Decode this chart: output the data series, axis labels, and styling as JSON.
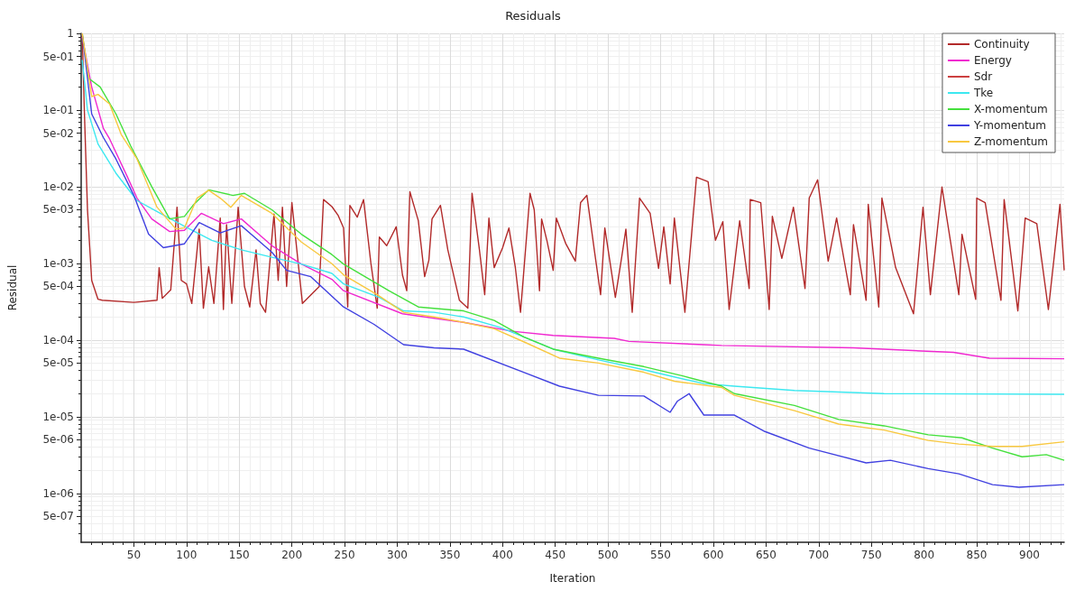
{
  "chart_data": {
    "type": "line",
    "title": "Residuals",
    "xlabel": "Iteration",
    "ylabel": "Residual",
    "log": "y",
    "grid": true,
    "legend": "top right",
    "marker": "none",
    "line_style": "solid",
    "xlim": [
      0,
      933
    ],
    "xticks": [
      50,
      100,
      150,
      200,
      250,
      300,
      350,
      400,
      450,
      500,
      550,
      600,
      650,
      700,
      750,
      800,
      850,
      900
    ],
    "ylim": [
      2.3e-07,
      1
    ],
    "yticks": [
      {
        "value": 1,
        "label": "1"
      },
      {
        "value": 0.5,
        "label": "5e-01"
      },
      {
        "value": 0.1,
        "label": "1e-01"
      },
      {
        "value": 0.05,
        "label": "5e-02"
      },
      {
        "value": 0.01,
        "label": "1e-02"
      },
      {
        "value": 0.005,
        "label": "5e-03"
      },
      {
        "value": 0.001,
        "label": "1e-03"
      },
      {
        "value": 0.0005,
        "label": "5e-04"
      },
      {
        "value": 0.0001,
        "label": "1e-04"
      },
      {
        "value": 5e-05,
        "label": "5e-05"
      },
      {
        "value": 1e-05,
        "label": "1e-05"
      },
      {
        "value": 5e-06,
        "label": "5e-06"
      },
      {
        "value": 1e-06,
        "label": "1e-06"
      },
      {
        "value": 5e-07,
        "label": "5e-07"
      }
    ],
    "series": [
      {
        "name": "Continuity",
        "color": "#b22a2a",
        "x": [
          1,
          3,
          6,
          10,
          16,
          20,
          50,
          72,
          74,
          77,
          85,
          91,
          95,
          100,
          105,
          112,
          116,
          121,
          126,
          132,
          135,
          138,
          143,
          149,
          155,
          160,
          166,
          170,
          175,
          183,
          187,
          191,
          195,
          200,
          210,
          226,
          230,
          238,
          244,
          249,
          253,
          255,
          262,
          268,
          275,
          281,
          283,
          290,
          299,
          305,
          309,
          312,
          320,
          326,
          330,
          333,
          341,
          348,
          359,
          367,
          371,
          378,
          383,
          387,
          392,
          400,
          406,
          412,
          417,
          426,
          430,
          435,
          437,
          442,
          448,
          451,
          460,
          469,
          474,
          480,
          487,
          493,
          497,
          507,
          513,
          517,
          523,
          530,
          540,
          548,
          553,
          559,
          563,
          573,
          584,
          595,
          602,
          609,
          615,
          625,
          634,
          635,
          645,
          653,
          656,
          665,
          676,
          687,
          691,
          699,
          709,
          717,
          730,
          733,
          745,
          747,
          757,
          760,
          773,
          790,
          799,
          806,
          817,
          833,
          836,
          849,
          850,
          858,
          873,
          876,
          889,
          896,
          907,
          918,
          929,
          933
        ],
        "values": [
          1,
          0.1,
          0.005,
          0.0006,
          0.00034,
          0.00033,
          0.00031,
          0.00033,
          0.00088,
          0.00035,
          0.00045,
          0.0054,
          0.0006,
          0.00054,
          0.0003,
          0.0028,
          0.00026,
          0.0009,
          0.0003,
          0.0039,
          0.00025,
          0.0032,
          0.0003,
          0.0054,
          0.0005,
          0.00027,
          0.0015,
          0.0003,
          0.00023,
          0.0044,
          0.0006,
          0.0054,
          0.0005,
          0.0062,
          0.0003,
          0.0005,
          0.0068,
          0.0055,
          0.0042,
          0.0029,
          0.00027,
          0.0057,
          0.004,
          0.0068,
          0.001,
          0.00026,
          0.0022,
          0.0017,
          0.003,
          0.0007,
          0.00044,
          0.0086,
          0.0036,
          0.00067,
          0.0011,
          0.0038,
          0.0057,
          0.0015,
          0.00033,
          0.00026,
          0.0082,
          0.0015,
          0.00039,
          0.0039,
          0.00088,
          0.0016,
          0.0029,
          0.0009,
          0.00023,
          0.0082,
          0.005,
          0.00044,
          0.0038,
          0.002,
          0.00081,
          0.0039,
          0.0018,
          0.00107,
          0.0062,
          0.0077,
          0.0015,
          0.00039,
          0.0029,
          0.00036,
          0.0012,
          0.0028,
          0.00023,
          0.0071,
          0.0045,
          0.00086,
          0.003,
          0.00054,
          0.0039,
          0.00023,
          0.0133,
          0.0116,
          0.002,
          0.0035,
          0.00025,
          0.0036,
          0.00047,
          0.0068,
          0.0062,
          0.00025,
          0.0041,
          0.00116,
          0.0054,
          0.00047,
          0.0071,
          0.0123,
          0.00107,
          0.0039,
          0.00039,
          0.0032,
          0.00033,
          0.0059,
          0.00027,
          0.0071,
          0.00088,
          0.00022,
          0.0054,
          0.00039,
          0.0099,
          0.00039,
          0.0024,
          0.00034,
          0.0071,
          0.0062,
          0.00033,
          0.0068,
          0.00024,
          0.0039,
          0.0033,
          0.00025,
          0.0059,
          0.00081
        ]
      },
      {
        "name": "Energy",
        "color": "#f028d0",
        "x": [
          1,
          10,
          21,
          27,
          44,
          53,
          67,
          84,
          98,
          114,
          135,
          152,
          181,
          209,
          238,
          249,
          305,
          363,
          409,
          448,
          506,
          520,
          591,
          608,
          733,
          828,
          862,
          933
        ],
        "values": [
          0.9,
          0.2,
          0.058,
          0.042,
          0.0133,
          0.0071,
          0.0038,
          0.0026,
          0.0027,
          0.0045,
          0.0033,
          0.0038,
          0.0017,
          0.00098,
          0.00062,
          0.00044,
          0.00022,
          0.00017,
          0.00013,
          0.000115,
          0.000105,
          9.6e-05,
          8.7e-05,
          8.5e-05,
          7.9e-05,
          6.9e-05,
          5.8e-05,
          5.7e-05
        ]
      },
      {
        "name": "Sdr",
        "color": "#cc4040"
      },
      {
        "name": "Tke",
        "color": "#3ce8f0",
        "x": [
          1,
          6,
          16,
          33,
          53,
          75,
          101,
          124,
          152,
          181,
          209,
          238,
          249,
          283,
          306,
          335,
          363,
          397,
          420,
          448,
          491,
          534,
          563,
          591,
          620,
          677,
          762,
          933
        ],
        "values": [
          0.45,
          0.1,
          0.036,
          0.015,
          0.0066,
          0.0045,
          0.0029,
          0.002,
          0.0015,
          0.0012,
          0.00098,
          0.00074,
          0.00054,
          0.00036,
          0.00024,
          0.00023,
          0.0002,
          0.000147,
          0.00011,
          7.6e-05,
          5.5e-05,
          4.1e-05,
          3.3e-05,
          2.7e-05,
          2.5e-05,
          2.2e-05,
          2e-05,
          1.96e-05
        ]
      },
      {
        "name": "X-momentum",
        "color": "#44e03c",
        "x": [
          1,
          7,
          18,
          33,
          47,
          67,
          84,
          98,
          107,
          121,
          144,
          155,
          181,
          209,
          238,
          249,
          292,
          320,
          363,
          392,
          420,
          448,
          491,
          534,
          571,
          608,
          620,
          677,
          719,
          762,
          804,
          836,
          865,
          893,
          916,
          933
        ],
        "values": [
          1,
          0.26,
          0.2,
          0.089,
          0.034,
          0.01,
          0.0038,
          0.0041,
          0.0059,
          0.0091,
          0.0077,
          0.0082,
          0.005,
          0.0024,
          0.0013,
          0.00098,
          0.00044,
          0.00027,
          0.00024,
          0.00018,
          0.00011,
          7.6e-05,
          5.8e-05,
          4.5e-05,
          3.4e-05,
          2.5e-05,
          2e-05,
          1.4e-05,
          9.2e-06,
          7.6e-06,
          5.8e-06,
          5.3e-06,
          3.9e-06,
          3e-06,
          3.2e-06,
          2.7e-06
        ]
      },
      {
        "name": "Y-momentum",
        "color": "#4040e0",
        "x": [
          1,
          10,
          21,
          33,
          50,
          64,
          78,
          98,
          112,
          132,
          152,
          181,
          195,
          218,
          249,
          278,
          306,
          335,
          363,
          420,
          454,
          491,
          534,
          559,
          566,
          577,
          591,
          620,
          649,
          691,
          745,
          768,
          804,
          833,
          865,
          890,
          933
        ],
        "values": [
          1,
          0.089,
          0.044,
          0.023,
          0.0077,
          0.0024,
          0.0016,
          0.0018,
          0.0034,
          0.0025,
          0.0031,
          0.0014,
          0.00081,
          0.00067,
          0.00027,
          0.00016,
          8.7e-05,
          7.9e-05,
          7.6e-05,
          3.8e-05,
          2.5e-05,
          1.9e-05,
          1.86e-05,
          1.14e-05,
          1.6e-05,
          2e-05,
          1.05e-05,
          1.05e-05,
          6.4e-06,
          3.9e-06,
          2.5e-06,
          2.7e-06,
          2.1e-06,
          1.8e-06,
          1.3e-06,
          1.2e-06,
          1.3e-06
        ]
      },
      {
        "name": "Z-momentum",
        "color": "#f8c840",
        "x": [
          1,
          10,
          16,
          27,
          38,
          53,
          72,
          90,
          98,
          110,
          121,
          132,
          142,
          152,
          181,
          209,
          238,
          249,
          281,
          306,
          335,
          363,
          392,
          420,
          454,
          491,
          534,
          563,
          608,
          620,
          677,
          719,
          762,
          804,
          833,
          865,
          893,
          933
        ],
        "values": [
          1,
          0.15,
          0.16,
          0.12,
          0.048,
          0.023,
          0.0054,
          0.0028,
          0.0029,
          0.0071,
          0.009,
          0.0071,
          0.0054,
          0.0077,
          0.0045,
          0.0019,
          0.00099,
          0.00071,
          0.00039,
          0.00023,
          0.0002,
          0.00017,
          0.00014,
          9.5e-05,
          5.8e-05,
          5e-05,
          3.8e-05,
          2.9e-05,
          2.4e-05,
          1.9e-05,
          1.2e-05,
          8e-06,
          6.7e-06,
          4.9e-06,
          4.4e-06,
          4.1e-06,
          4.1e-06,
          4.7e-06
        ]
      }
    ]
  }
}
